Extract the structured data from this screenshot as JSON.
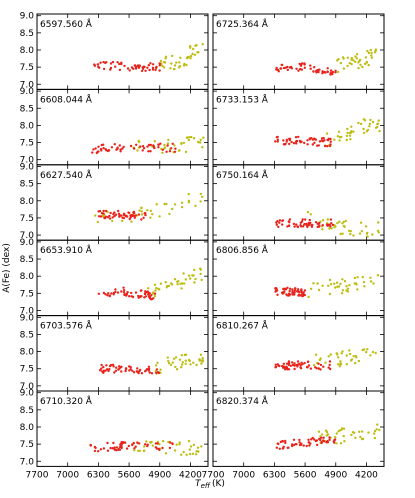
{
  "chart_data": {
    "type": "scatter",
    "ylabel": "A(Fe) (dex)",
    "xlabel": "T_eff (K)",
    "xlabel_main": "T",
    "xlabel_sub": "eff",
    "xlabel_unit": "(K)",
    "xlim": [
      7700,
      3800
    ],
    "ylim": [
      6.85,
      9.05
    ],
    "x_ticks": [
      7700,
      7000,
      6300,
      5600,
      4900,
      4200
    ],
    "x_tick_labels": [
      "7700",
      "7000",
      "6300",
      "5600",
      "4900",
      "4200"
    ],
    "y_ticks": [
      7.0,
      7.5,
      8.0,
      8.5,
      9.0
    ],
    "y_tick_labels": [
      "7.0",
      "7.5",
      "8.0",
      "8.5",
      "9.0"
    ],
    "colors": {
      "red": "#e8231c",
      "yellow": "#bdbd12"
    },
    "panels": [
      {
        "title": "6597.560 Å",
        "red": {
          "t": [
            6400,
            5700,
            4900
          ],
          "a": [
            7.55,
            7.52,
            7.5
          ]
        },
        "yellow": {
          "t": [
            4900,
            4300,
            4200
          ],
          "a": [
            7.55,
            7.7,
            7.95
          ]
        }
      },
      {
        "title": "6725.364 Å",
        "red": {
          "t": [
            6300,
            5600,
            4900
          ],
          "a": [
            7.45,
            7.5,
            7.3
          ]
        },
        "yellow": {
          "t": [
            4900,
            4300,
            4100
          ],
          "a": [
            7.55,
            7.7,
            7.8
          ]
        }
      },
      {
        "title": "6608.044 Å",
        "red": {
          "t": [
            6500,
            5700,
            4500
          ],
          "a": [
            7.3,
            7.35,
            7.35
          ]
        },
        "yellow": {
          "t": [
            5500,
            4600,
            4100
          ],
          "a": [
            7.45,
            7.4,
            7.45
          ]
        }
      },
      {
        "title": "6733.153 Å",
        "red": {
          "t": [
            6300,
            5600,
            5000
          ],
          "a": [
            7.55,
            7.55,
            7.5
          ]
        },
        "yellow": {
          "t": [
            5200,
            4600,
            4200
          ],
          "a": [
            7.6,
            7.75,
            8.0
          ]
        }
      },
      {
        "title": "6627.540 Å",
        "red": {
          "t": [
            6400,
            5800,
            5200
          ],
          "a": [
            7.58,
            7.6,
            7.55
          ]
        },
        "yellow": {
          "t": [
            6400,
            5000,
            4300
          ],
          "a": [
            7.4,
            7.7,
            8.0
          ]
        }
      },
      {
        "title": "6750.164 Å",
        "red": {
          "t": [
            6300,
            5600,
            4900
          ],
          "a": [
            7.35,
            7.35,
            7.35
          ]
        },
        "yellow": {
          "t": [
            5600,
            4800,
            4200
          ],
          "a": [
            7.5,
            7.25,
            7.15
          ]
        }
      },
      {
        "title": "6653.910 Å",
        "red": {
          "t": [
            6300,
            5700,
            5000
          ],
          "a": [
            7.5,
            7.55,
            7.4
          ]
        },
        "yellow": {
          "t": [
            5200,
            4600,
            4200
          ],
          "a": [
            7.5,
            7.7,
            8.0
          ]
        }
      },
      {
        "title": "6806.856 Å",
        "red": {
          "t": [
            6300,
            5900,
            5600
          ],
          "a": [
            7.55,
            7.55,
            7.5
          ]
        },
        "yellow": {
          "t": [
            5600,
            4800,
            4100
          ],
          "a": [
            7.6,
            7.7,
            7.9
          ]
        }
      },
      {
        "title": "6703.576 Å",
        "red": {
          "t": [
            6300,
            5600,
            4900
          ],
          "a": [
            7.5,
            7.5,
            7.45
          ]
        },
        "yellow": {
          "t": [
            5000,
            4500,
            4200
          ],
          "a": [
            7.55,
            7.7,
            7.8
          ]
        }
      },
      {
        "title": "6810.267 Å",
        "red": {
          "t": [
            6300,
            5600,
            5000
          ],
          "a": [
            7.6,
            7.6,
            7.6
          ]
        },
        "yellow": {
          "t": [
            5400,
            4700,
            4100
          ],
          "a": [
            7.7,
            7.8,
            7.95
          ]
        }
      },
      {
        "title": "6710.320 Å",
        "red": {
          "t": [
            6500,
            5600,
            4600
          ],
          "a": [
            7.4,
            7.45,
            7.45
          ]
        },
        "yellow": {
          "t": [
            5500,
            4700,
            4100
          ],
          "a": [
            7.45,
            7.4,
            7.4
          ]
        }
      },
      {
        "title": "6820.374 Å",
        "red": {
          "t": [
            6300,
            5600,
            4900
          ],
          "a": [
            7.45,
            7.55,
            7.6
          ]
        },
        "yellow": {
          "t": [
            5300,
            4700,
            4100
          ],
          "a": [
            7.65,
            7.75,
            7.85
          ]
        }
      }
    ]
  }
}
